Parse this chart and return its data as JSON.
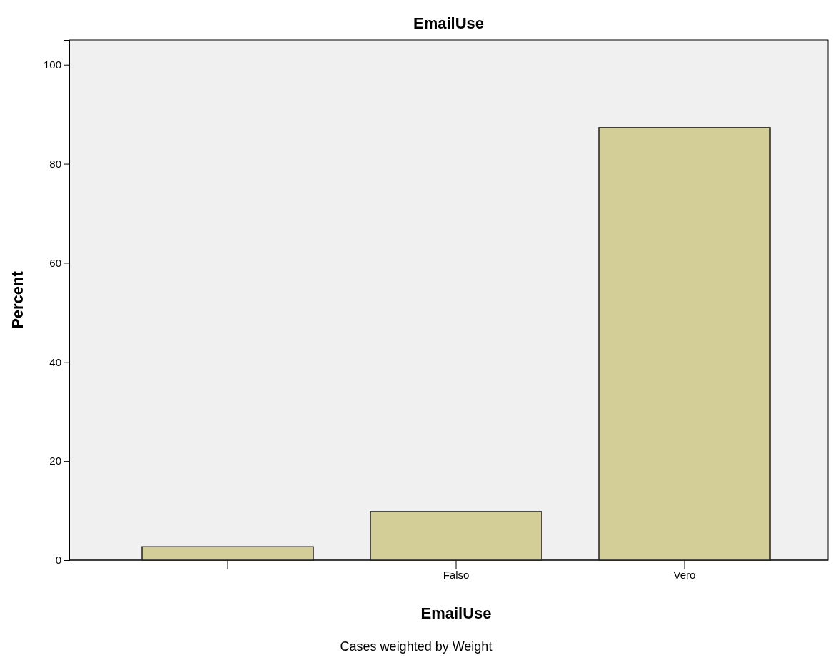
{
  "chart_data": {
    "type": "bar",
    "title": "EmailUse",
    "xlabel": "EmailUse",
    "ylabel": "Percent",
    "categories": [
      null,
      "Falso",
      "Vero"
    ],
    "values": [
      2.7,
      9.8,
      87.3
    ],
    "color": "#d3ce97",
    "ylim": [
      0,
      105
    ],
    "yticks": [
      0,
      20,
      40,
      60,
      80,
      100
    ],
    "grid": false,
    "annotations": [
      "Cases weighted by Weight"
    ]
  }
}
